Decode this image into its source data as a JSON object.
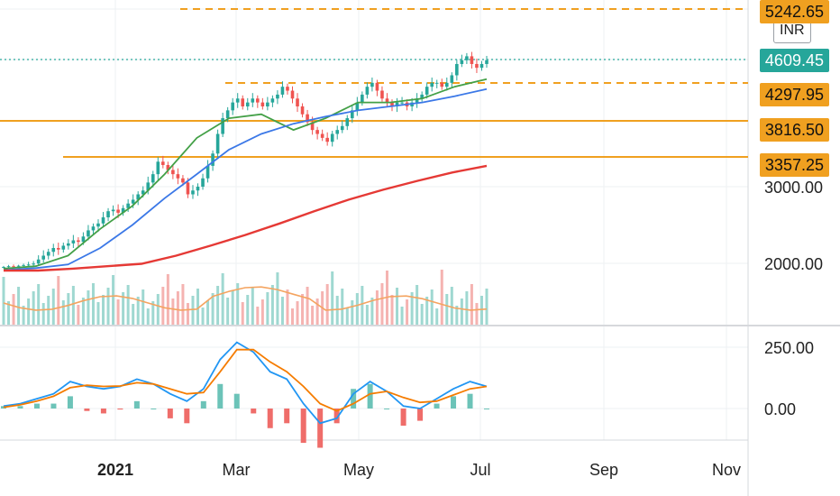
{
  "currency_badge": "INR",
  "price_labels": {
    "target": "5242.65",
    "last": "4609.45",
    "level_1": "4297.95",
    "level_2": "3816.50",
    "level_3": "3357.25"
  },
  "colors": {
    "up": "#26a69a",
    "down": "#ef5350",
    "level_line": "#f0a020",
    "ma_fast": "#43a047",
    "ma_mid": "#3b78e7",
    "ma_slow": "#e53935",
    "macd": "#2196f3",
    "signal": "#f57c00",
    "volume_ma": "#f4a460",
    "last_price_line": "#26a69a"
  },
  "chart_data": {
    "type": "candlestick",
    "price_axis": {
      "ticks": [
        2000,
        3000
      ],
      "tick_labels": [
        "2000.00",
        "3000.00"
      ],
      "range": [
        1700,
        5300
      ]
    },
    "time_axis": {
      "labels": [
        "2021",
        "Mar",
        "May",
        "Jul",
        "Sep",
        "Nov"
      ]
    },
    "horizontal_levels": [
      {
        "value": 5242.65,
        "style": "dashed"
      },
      {
        "value": 4297.95,
        "style": "dashed"
      },
      {
        "value": 3816.5,
        "style": "solid"
      },
      {
        "value": 3357.25,
        "style": "solid"
      }
    ],
    "last_price": 4609.45,
    "price_closes": [
      1850,
      1880,
      1860,
      1900,
      1930,
      1950,
      1990,
      2050,
      2100,
      2150,
      2200,
      2180,
      2230,
      2260,
      2300,
      2280,
      2350,
      2430,
      2480,
      2520,
      2600,
      2680,
      2700,
      2660,
      2720,
      2780,
      2830,
      2900,
      2950,
      3050,
      3150,
      3300,
      3260,
      3200,
      3150,
      3100,
      3050,
      2900,
      2950,
      3000,
      3100,
      3250,
      3400,
      3650,
      3850,
      3950,
      4050,
      4100,
      4000,
      4050,
      4100,
      4050,
      4000,
      4050,
      4100,
      4150,
      4250,
      4200,
      4100,
      4000,
      3900,
      3800,
      3700,
      3650,
      3600,
      3550,
      3650,
      3700,
      3750,
      3850,
      3950,
      4050,
      4150,
      4250,
      4300,
      4200,
      4100,
      4050,
      4000,
      4050,
      4050,
      4000,
      4050,
      4100,
      4150,
      4250,
      4300,
      4300,
      4250,
      4300,
      4400,
      4550,
      4600,
      4650,
      4550,
      4500,
      4550,
      4600
    ],
    "moving_averages": [
      {
        "period": "fast",
        "values": [
          1780,
          1880,
          2100,
          2450,
          2750,
          3150,
          3600,
          3850,
          3900,
          3700,
          3850,
          4050,
          4050,
          4100,
          4250,
          4350
        ]
      },
      {
        "period": "mid",
        "values": [
          1720,
          1800,
          1950,
          2200,
          2500,
          2850,
          3150,
          3450,
          3650,
          3780,
          3870,
          3950,
          4000,
          4050,
          4130,
          4220
        ]
      },
      {
        "period": "slow",
        "values": [
          1600,
          1690,
          1780,
          1880,
          1980,
          2100,
          2230,
          2370,
          2520,
          2680,
          2830,
          2960,
          3070,
          3170,
          3250
        ]
      }
    ],
    "macd": {
      "axis_ticks": [
        250,
        0
      ],
      "axis_labels": [
        "250.00",
        "0.00"
      ],
      "macd_line": [
        10,
        20,
        40,
        60,
        110,
        90,
        80,
        90,
        120,
        100,
        60,
        30,
        80,
        200,
        270,
        230,
        150,
        120,
        20,
        -60,
        -40,
        60,
        110,
        70,
        10,
        0,
        40,
        80,
        110,
        90
      ],
      "signal_line": [
        5,
        15,
        30,
        50,
        85,
        95,
        90,
        92,
        105,
        100,
        80,
        60,
        65,
        150,
        240,
        240,
        190,
        150,
        90,
        20,
        -10,
        20,
        60,
        70,
        45,
        25,
        30,
        55,
        80,
        90
      ]
    }
  }
}
